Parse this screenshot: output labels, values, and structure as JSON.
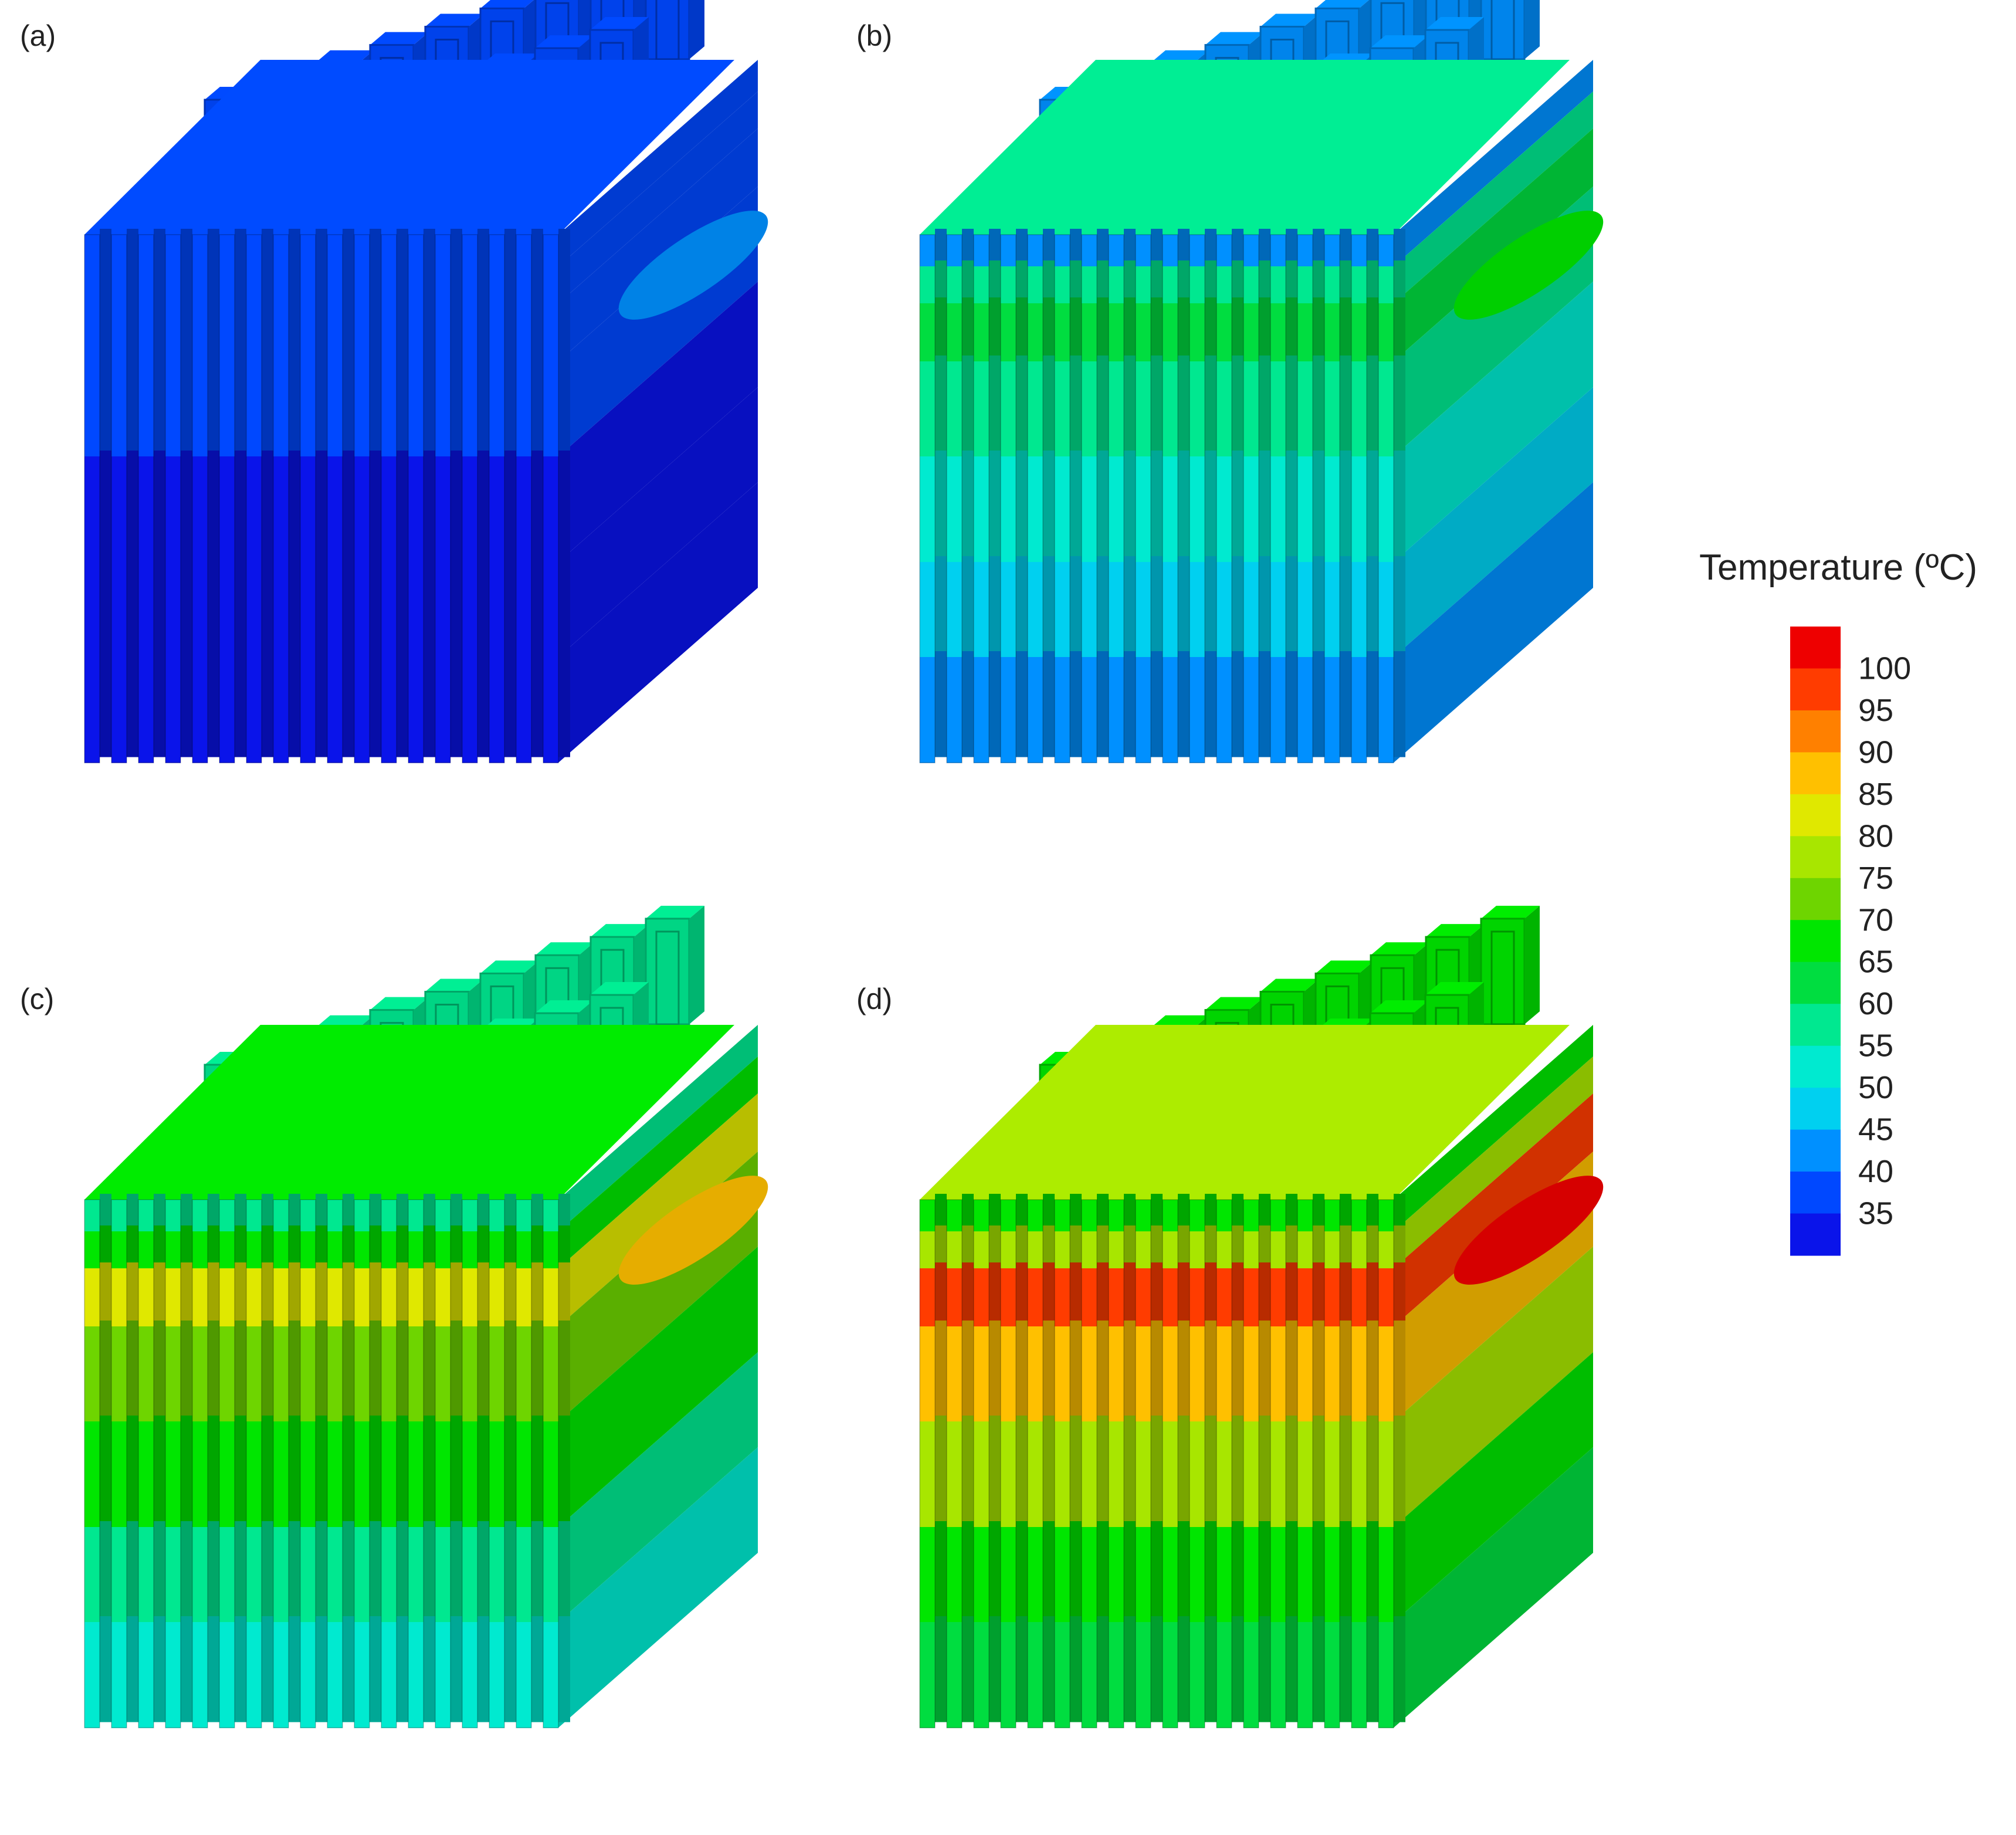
{
  "figure": {
    "panels": [
      {
        "label": "(a)",
        "field": [
          36,
          36,
          37,
          38,
          35,
          35,
          35
        ]
      },
      {
        "label": "(b)",
        "field": [
          43,
          58,
          62,
          56,
          52,
          48,
          42
        ]
      },
      {
        "label": "(c)",
        "field": [
          58,
          70,
          82,
          74,
          66,
          60,
          55
        ]
      },
      {
        "label": "(d)",
        "field": [
          67,
          80,
          97,
          88,
          76,
          68,
          64
        ]
      }
    ],
    "legend": {
      "title": "Temperature (ºC)",
      "ticks": [
        "100",
        "95",
        "90",
        "85",
        "80",
        "75",
        "70",
        "65",
        "60",
        "55",
        "50",
        "45",
        "40",
        "35"
      ],
      "colors": [
        "#ee0000",
        "#ff3c00",
        "#ff8000",
        "#ffc000",
        "#e0e800",
        "#a8e600",
        "#6ed500",
        "#00e600",
        "#00dd40",
        "#00e890",
        "#00ead0",
        "#00d0f0",
        "#0090ff",
        "#0048ff",
        "#0a14ea"
      ],
      "min": 32.5,
      "max": 105,
      "step": 5
    }
  }
}
